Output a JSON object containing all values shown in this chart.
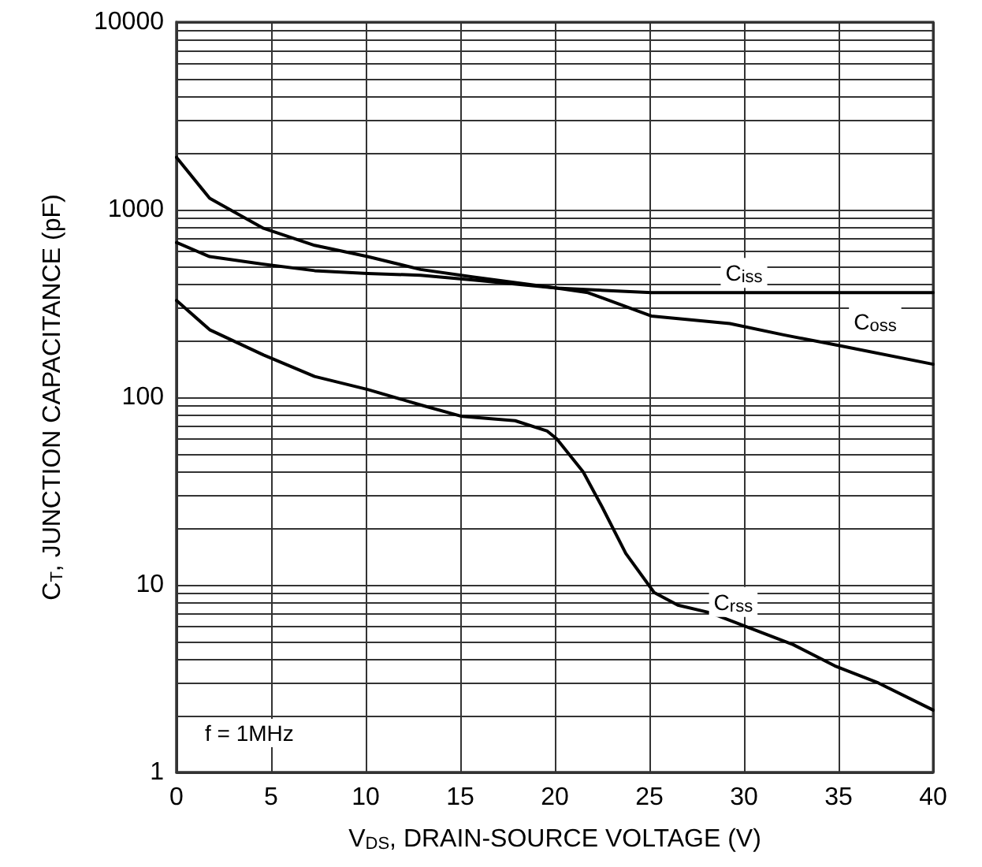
{
  "chart_data": {
    "type": "line",
    "xlabel": "V$_{DS}$, DRAIN-SOURCE VOLTAGE (V)",
    "ylabel": "C$_{T}$, JUNCTION CAPACITANCE (pF)",
    "log": "y",
    "grid": true,
    "legend": false,
    "marker": "none",
    "line_style": "solid",
    "xlim": [
      0,
      40
    ],
    "xticks": [
      0,
      5,
      10,
      15,
      20,
      25,
      30,
      35,
      40
    ],
    "ylim": [
      1,
      10000
    ],
    "yticks": [
      1,
      10,
      100,
      1000,
      10000
    ],
    "annotations": [
      "f = 1MHz"
    ],
    "series": [
      {
        "name": "C$_{iss}$",
        "color": "#000000",
        "x": [
          0,
          1.75,
          4.6,
          7.3,
          10.1,
          12.9,
          15.7,
          20.1,
          25.1,
          30,
          35,
          40
        ],
        "values": [
          1900,
          1150,
          795,
          645,
          562,
          480,
          437,
          382,
          361,
          361,
          361,
          361
        ]
      },
      {
        "name": "C$_{oss}$",
        "color": "#000000",
        "x": [
          0,
          1.75,
          4.6,
          7.3,
          10.1,
          12.9,
          15.7,
          20.1,
          21.75,
          25.1,
          29.25,
          32.1,
          35.1,
          40
        ],
        "values": [
          668,
          562,
          512,
          473,
          457,
          447,
          422,
          382,
          361,
          271,
          247,
          215,
          188,
          150
        ]
      },
      {
        "name": "C$_{rss}$",
        "color": "#000000",
        "x": [
          0,
          1.75,
          4.6,
          7.3,
          10.1,
          12.9,
          15.1,
          17.9,
          19.6,
          20.1,
          21.5,
          22.5,
          23.75,
          25.25,
          26.5,
          28.2,
          30.1,
          32.6,
          34.8,
          37.1,
          40
        ],
        "values": [
          328,
          229,
          168,
          129,
          110,
          91,
          79,
          75,
          66,
          60,
          40,
          26,
          14.7,
          9.1,
          7.8,
          7.1,
          6.0,
          4.8,
          3.7,
          3.0,
          2.15
        ]
      }
    ]
  }
}
